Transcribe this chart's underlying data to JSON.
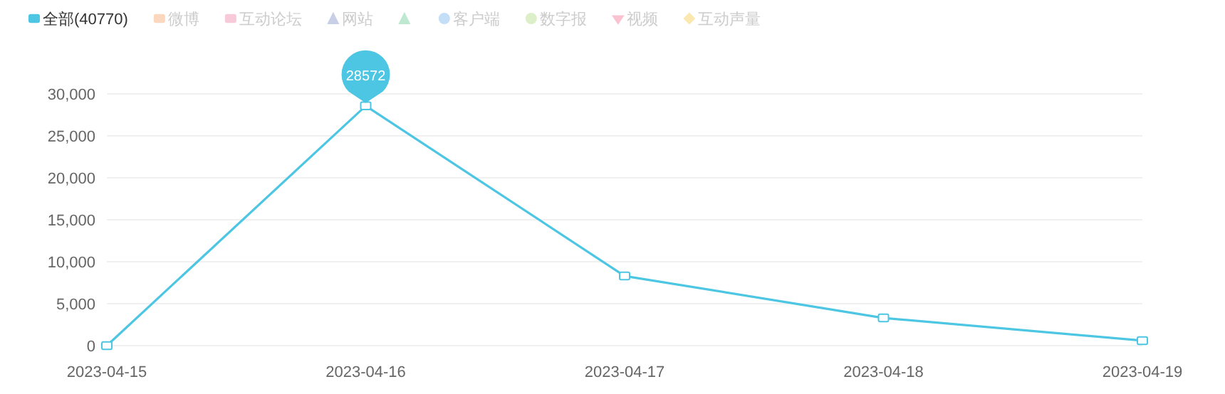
{
  "chart_data": {
    "type": "line",
    "categories": [
      "2023-04-15",
      "2023-04-16",
      "2023-04-17",
      "2023-04-18",
      "2023-04-19"
    ],
    "series": [
      {
        "name": "全部(40770)",
        "color": "#4cc6e2",
        "marker": "square",
        "values": [
          0,
          28572,
          8300,
          3300,
          600
        ],
        "value_labels": [
          null,
          "28572",
          null,
          null,
          null
        ]
      },
      {
        "name": "微博",
        "color": "#fbd8bd",
        "marker": "square",
        "values": [
          null,
          null,
          null,
          null,
          null
        ]
      },
      {
        "name": "互动论坛",
        "color": "#f8c9d8",
        "marker": "square",
        "values": [
          null,
          null,
          null,
          null,
          null
        ]
      },
      {
        "name": "网站",
        "color": "#c9cfe6",
        "marker": "triangle",
        "values": [
          null,
          null,
          null,
          null,
          null
        ]
      },
      {
        "color": "#bfe8d2",
        "marker": "triangle",
        "values": [
          null,
          null,
          null,
          null,
          null
        ]
      },
      {
        "name": "客户端",
        "color": "#c4def7",
        "marker": "circle",
        "values": [
          null,
          null,
          null,
          null,
          null
        ]
      },
      {
        "name": "数字报",
        "color": "#dcefc8",
        "marker": "circle",
        "values": [
          null,
          null,
          null,
          null,
          null
        ]
      },
      {
        "name": "视频",
        "color": "#f9c3cf",
        "marker": "heart",
        "values": [
          null,
          null,
          null,
          null,
          null
        ]
      },
      {
        "name": "互动声量",
        "color": "#fbe7b0",
        "marker": "diamond",
        "values": [
          null,
          null,
          null,
          null,
          null
        ]
      }
    ],
    "ylim": [
      0,
      30000
    ],
    "yticks": [
      {
        "value": 0,
        "label": "0"
      },
      {
        "value": 5000,
        "label": "5,000"
      },
      {
        "value": 10000,
        "label": "10,000"
      },
      {
        "value": 15000,
        "label": "15,000"
      },
      {
        "value": 20000,
        "label": "20,000"
      },
      {
        "value": 25000,
        "label": "25,000"
      },
      {
        "value": 30000,
        "label": "30,000"
      }
    ],
    "grid": "y",
    "legend": "top left"
  }
}
